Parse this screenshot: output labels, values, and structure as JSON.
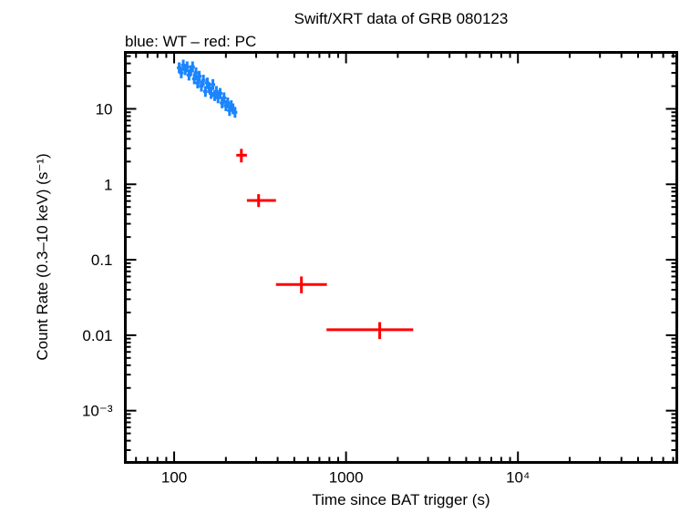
{
  "chart_data": {
    "type": "scatter",
    "title": "Swift/XRT data of GRB 080123",
    "subtitle": "blue: WT – red: PC",
    "xlabel": "Time since BAT trigger (s)",
    "ylabel": "Count Rate (0.3–10 keV) (s⁻¹)",
    "xscale": "log",
    "yscale": "log",
    "xlim": [
      52,
      84000
    ],
    "ylim": [
      0.000206,
      56
    ],
    "grid": false,
    "x_ticks": [
      {
        "value": 100,
        "label": "100"
      },
      {
        "value": 1000,
        "label": "1000"
      },
      {
        "value": 10000,
        "label": "10⁴"
      }
    ],
    "y_ticks": [
      {
        "value": 10,
        "label": "10"
      },
      {
        "value": 1,
        "label": "1"
      },
      {
        "value": 0.1,
        "label": "0.1"
      },
      {
        "value": 0.01,
        "label": "0.01"
      },
      {
        "value": 0.001,
        "label": "10⁻³"
      }
    ],
    "series": [
      {
        "color": "#1a85ff",
        "points": [
          [
            107,
            35
          ],
          [
            110,
            30
          ],
          [
            113,
            38
          ],
          [
            116,
            33
          ],
          [
            119,
            36
          ],
          [
            122,
            28
          ],
          [
            125,
            32
          ],
          [
            128,
            36
          ],
          [
            131,
            25
          ],
          [
            134,
            30
          ],
          [
            137,
            22
          ],
          [
            140,
            27
          ],
          [
            144,
            20
          ],
          [
            148,
            24
          ],
          [
            152,
            17
          ],
          [
            156,
            22
          ],
          [
            160,
            19
          ],
          [
            164,
            16
          ],
          [
            168,
            21
          ],
          [
            172,
            15
          ],
          [
            176,
            17
          ],
          [
            180,
            14
          ],
          [
            185,
            16
          ],
          [
            190,
            12
          ],
          [
            195,
            14
          ],
          [
            200,
            11
          ],
          [
            205,
            12
          ],
          [
            210,
            9.5
          ],
          [
            215,
            11
          ],
          [
            220,
            10
          ],
          [
            226,
            9
          ]
        ]
      },
      {
        "color": "#ff0000",
        "points": [
          {
            "x": 246,
            "xlo": 230,
            "xhi": 265,
            "y": 2.43,
            "ylo": 1.95,
            "yhi": 2.95
          },
          {
            "x": 310,
            "xlo": 265,
            "xhi": 391,
            "y": 0.61,
            "ylo": 0.5,
            "yhi": 0.74
          },
          {
            "x": 550,
            "xlo": 391,
            "xhi": 774,
            "y": 0.047,
            "ylo": 0.036,
            "yhi": 0.06
          },
          {
            "x": 1570,
            "xlo": 770,
            "xhi": 2460,
            "y": 0.0118,
            "ylo": 0.0089,
            "yhi": 0.0149
          }
        ]
      }
    ]
  }
}
